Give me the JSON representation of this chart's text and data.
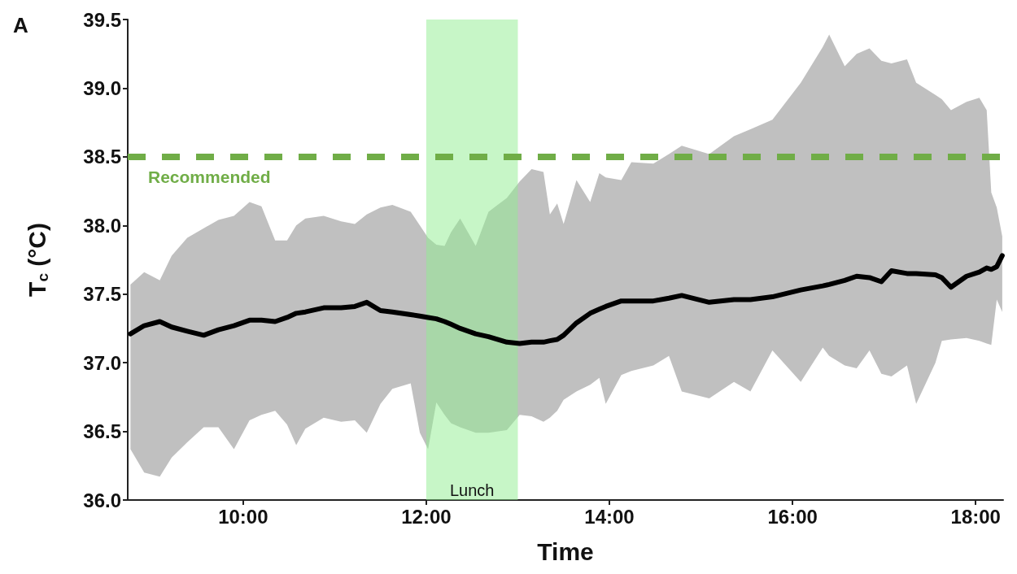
{
  "chart_data": {
    "type": "line",
    "xlabel": "Time",
    "ylabel": "T$_{c}$ (°C)",
    "annotations": [
      "A"
    ],
    "x": [
      8.77,
      8.92,
      9.09,
      9.22,
      9.39,
      9.57,
      9.73,
      9.9,
      10.07,
      10.2,
      10.35,
      10.48,
      10.58,
      10.68,
      10.88,
      11.07,
      11.22,
      11.35,
      11.5,
      11.63,
      11.83,
      11.93,
      12.02,
      12.11,
      12.2,
      12.27,
      12.37,
      12.54,
      12.68,
      12.88,
      13.02,
      13.15,
      13.28,
      13.35,
      13.43,
      13.5,
      13.64,
      13.79,
      13.89,
      13.96,
      14.13,
      14.24,
      14.48,
      14.65,
      14.79,
      15.09,
      15.36,
      15.54,
      15.78,
      16.09,
      16.33,
      16.4,
      16.57,
      16.7,
      16.84,
      16.97,
      17.08,
      17.25,
      17.35,
      17.56,
      17.63,
      17.73,
      17.9,
      18.04,
      18.12,
      18.17,
      18.23,
      18.29
    ],
    "series": [
      {
        "color": "#000000",
        "values": [
          37.21,
          37.27,
          37.3,
          37.26,
          37.23,
          37.2,
          37.24,
          37.27,
          37.31,
          37.31,
          37.3,
          37.33,
          37.36,
          37.37,
          37.4,
          37.4,
          37.41,
          37.44,
          37.38,
          37.37,
          37.35,
          37.34,
          37.33,
          37.32,
          37.3,
          37.28,
          37.25,
          37.21,
          37.19,
          37.15,
          37.14,
          37.15,
          37.15,
          37.16,
          37.17,
          37.2,
          37.29,
          37.36,
          37.39,
          37.41,
          37.45,
          37.45,
          37.45,
          37.47,
          37.49,
          37.44,
          37.46,
          37.46,
          37.48,
          37.53,
          37.56,
          37.57,
          37.6,
          37.63,
          37.62,
          37.59,
          37.67,
          37.65,
          37.65,
          37.64,
          37.62,
          37.55,
          37.63,
          37.66,
          37.69,
          37.68,
          37.7,
          37.78
        ],
        "lower": [
          36.37,
          36.2,
          36.17,
          36.31,
          36.42,
          36.53,
          36.53,
          36.37,
          36.58,
          36.62,
          36.65,
          36.55,
          36.4,
          36.52,
          36.6,
          36.57,
          36.58,
          36.49,
          36.7,
          36.81,
          36.85,
          36.49,
          36.37,
          36.71,
          36.62,
          36.56,
          36.53,
          36.49,
          36.49,
          36.51,
          36.62,
          36.61,
          36.57,
          36.6,
          36.65,
          36.73,
          36.79,
          36.84,
          36.89,
          36.7,
          36.91,
          36.94,
          36.98,
          37.05,
          36.79,
          36.74,
          36.86,
          36.79,
          37.09,
          36.86,
          37.11,
          37.05,
          36.98,
          36.96,
          37.09,
          36.92,
          36.9,
          36.98,
          36.7,
          37.0,
          37.16,
          37.17,
          37.18,
          37.16,
          37.14,
          37.13,
          37.46,
          37.37
        ],
        "upper": [
          37.57,
          37.66,
          37.6,
          37.78,
          37.91,
          37.98,
          38.04,
          38.07,
          38.17,
          38.14,
          37.89,
          37.89,
          38.0,
          38.05,
          38.07,
          38.03,
          38.01,
          38.08,
          38.13,
          38.15,
          38.1,
          38.0,
          37.91,
          37.86,
          37.85,
          37.95,
          38.05,
          37.85,
          38.1,
          38.2,
          38.32,
          38.41,
          38.39,
          38.08,
          38.16,
          38.01,
          38.33,
          38.17,
          38.38,
          38.35,
          38.33,
          38.46,
          38.45,
          38.52,
          38.58,
          38.52,
          38.65,
          38.7,
          38.77,
          39.04,
          39.3,
          39.39,
          39.16,
          39.25,
          39.29,
          39.2,
          39.18,
          39.21,
          39.04,
          38.95,
          38.92,
          38.84,
          38.9,
          38.93,
          38.84,
          38.24,
          38.13,
          37.92
        ]
      }
    ],
    "marker": "none",
    "xlim": [
      8.74,
      18.3
    ],
    "xticks": [
      {
        "value": 10,
        "label": "10:00"
      },
      {
        "value": 12,
        "label": "12:00"
      },
      {
        "value": 14,
        "label": "14:00"
      },
      {
        "value": 16,
        "label": "16:00"
      },
      {
        "value": 18,
        "label": "18:00"
      }
    ],
    "ylim": [
      36,
      39.5
    ],
    "yticks": [
      {
        "value": 36,
        "label": "36.0"
      },
      {
        "value": 36.5,
        "label": "36.5"
      },
      {
        "value": 37,
        "label": "37.0"
      },
      {
        "value": 37.5,
        "label": "37.5"
      },
      {
        "value": 38,
        "label": "38.0"
      },
      {
        "value": 38.5,
        "label": "38.5"
      },
      {
        "value": 39,
        "label": "39.0"
      },
      {
        "value": 39.5,
        "label": "39.5"
      }
    ],
    "ref_lines": [
      {
        "axis": "y",
        "value": 38.5,
        "label": "Recommended",
        "color": "#70ad47",
        "line_style": "dashed"
      }
    ],
    "bands": [
      {
        "axis": "x",
        "from": 12,
        "to": 13,
        "label": "Lunch",
        "color": "#90ee90"
      }
    ]
  }
}
